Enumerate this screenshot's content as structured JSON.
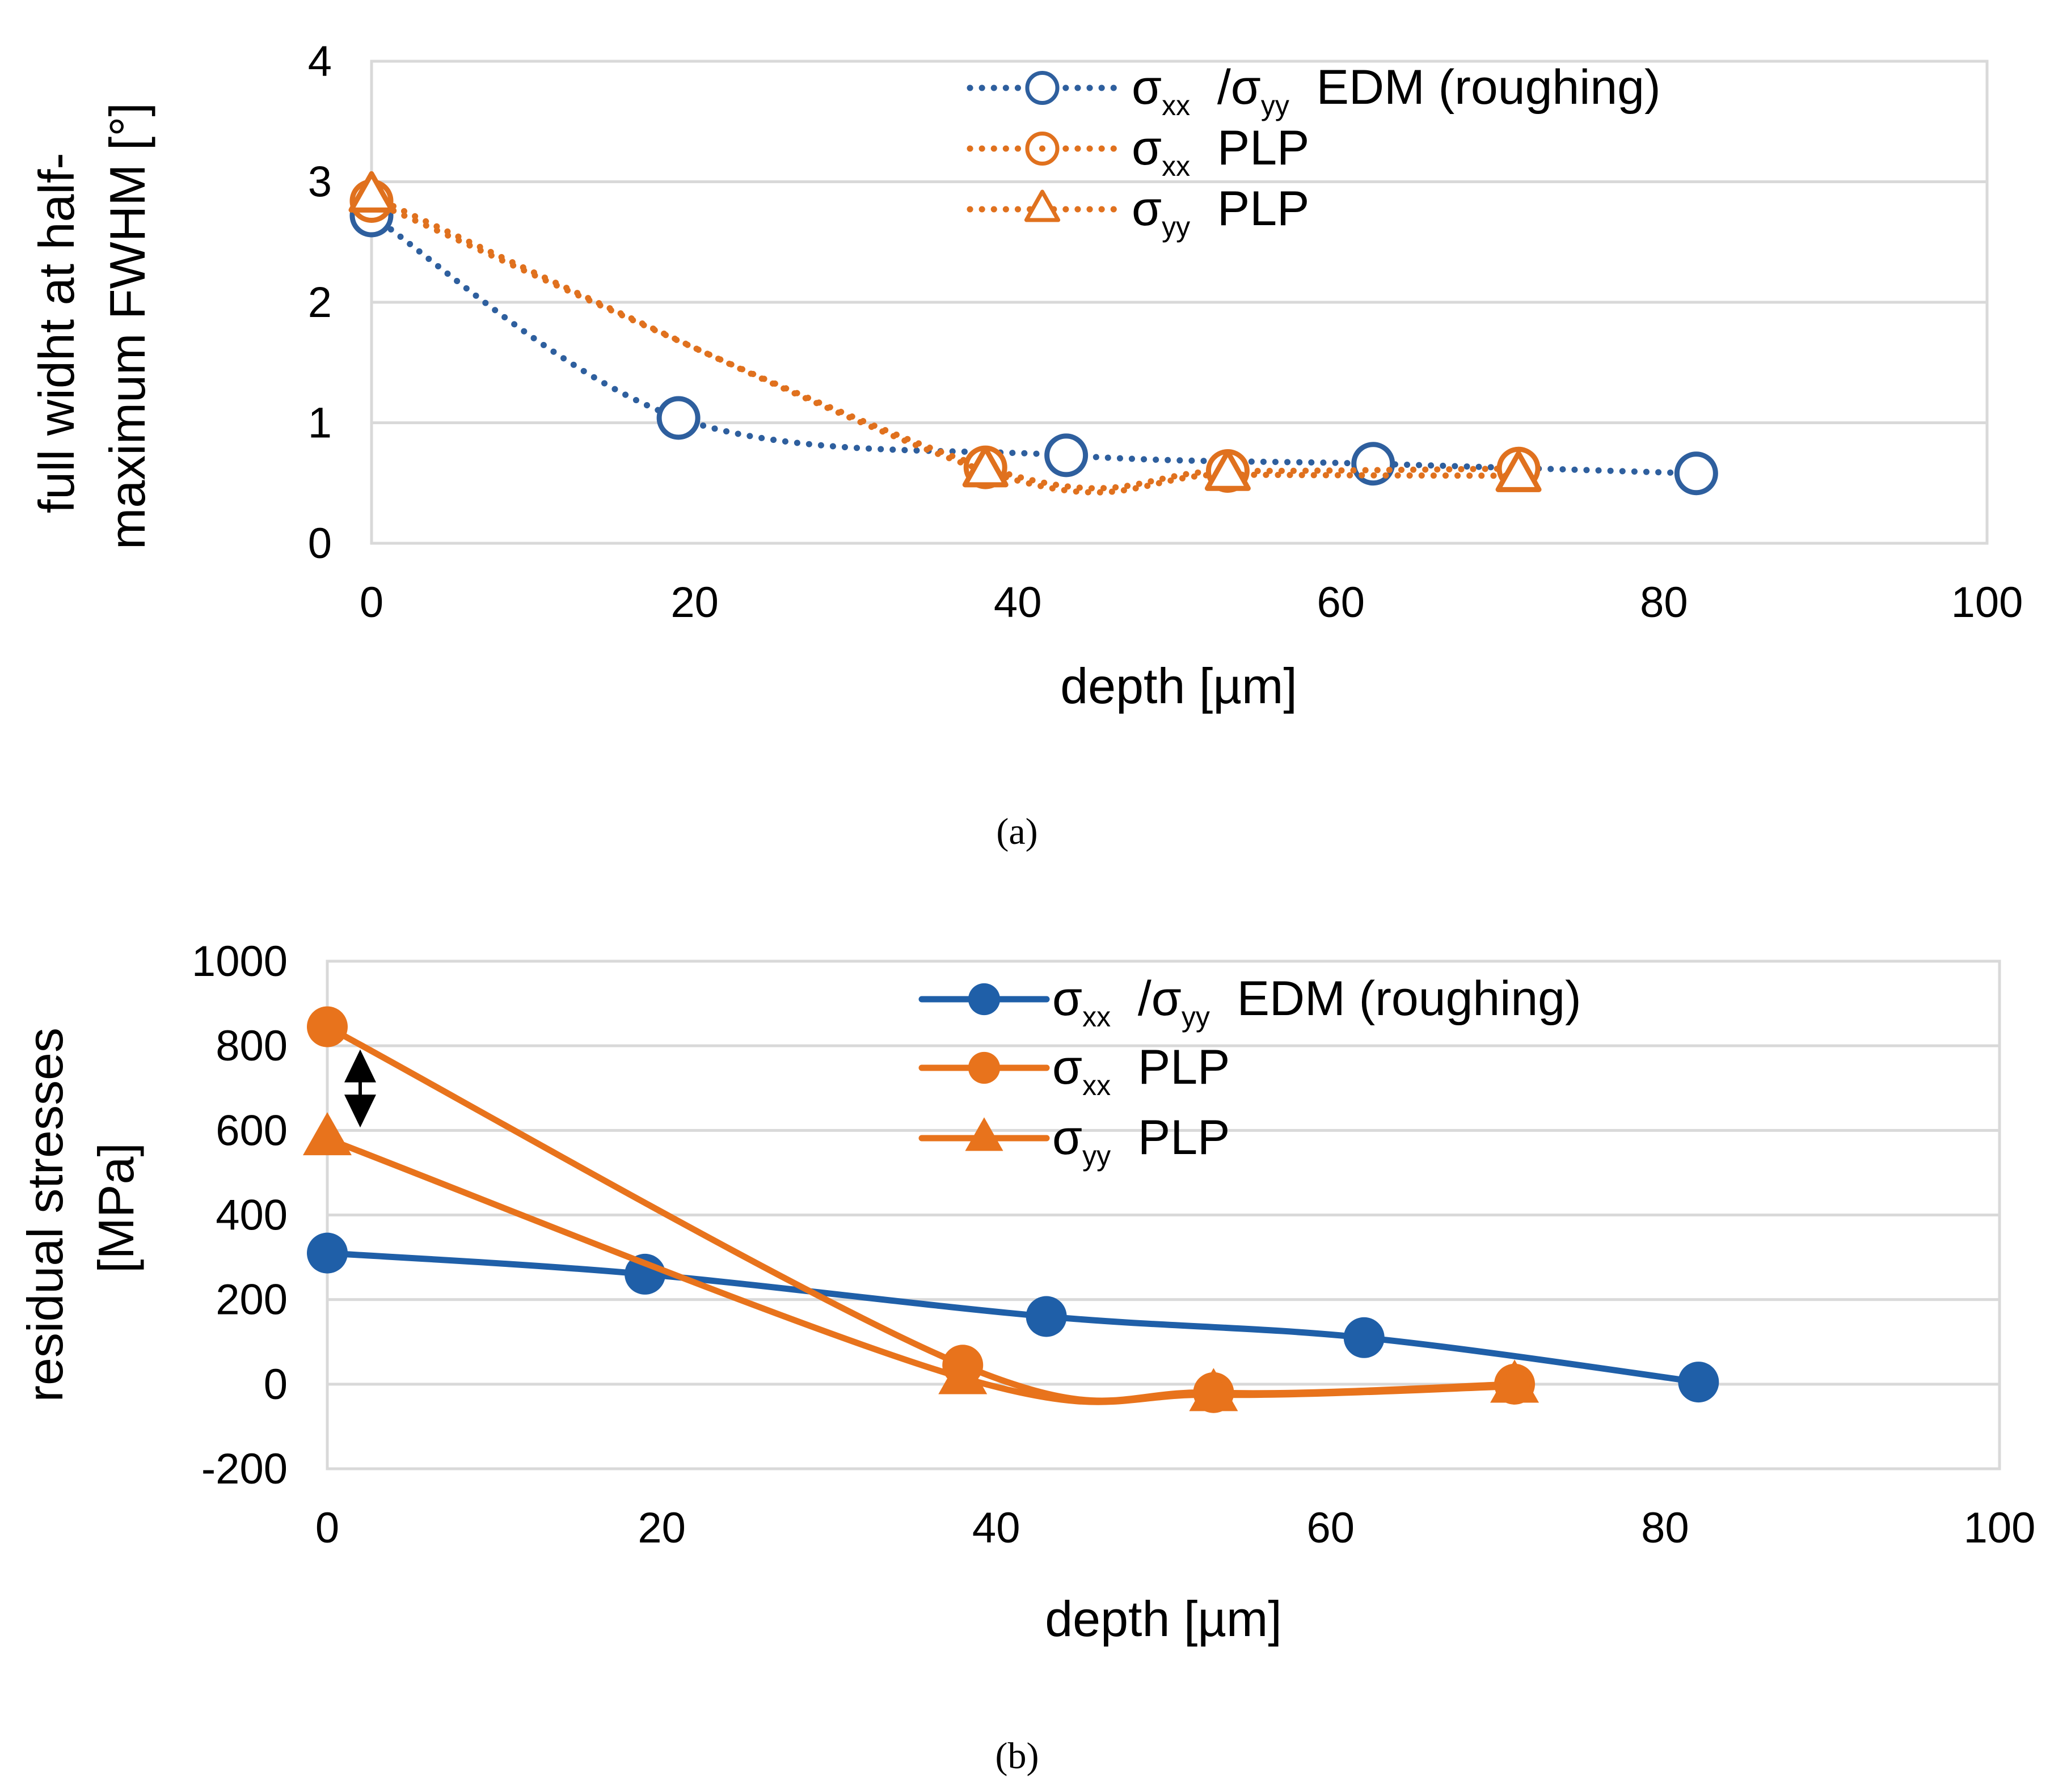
{
  "chart_data": [
    {
      "type": "line",
      "panel": "a",
      "caption": "(a)",
      "ylabel_lines": [
        "full widht at half-",
        "maximum FWHM [°]"
      ],
      "xlabel": "depth [µm]",
      "xlim": [
        0,
        100
      ],
      "ylim": [
        0,
        4
      ],
      "xticks": [
        "0",
        "20",
        "40",
        "60",
        "80",
        "100"
      ],
      "yticks": [
        "0",
        "1",
        "2",
        "3",
        "4"
      ],
      "grid": true,
      "legend_position": "top-right",
      "series": [
        {
          "name": "σxx /σyy EDM (roughing)",
          "legend": {
            "main": "σ",
            "sub1": "xx",
            "mid": " /σ",
            "sub2": "yy",
            "rest": " EDM (roughing)"
          },
          "color": "#2e5f9e",
          "line": "dotted",
          "marker": "open-circle",
          "x": [
            0,
            19,
            43,
            62,
            82
          ],
          "y": [
            2.72,
            1.04,
            0.73,
            0.66,
            0.58
          ]
        },
        {
          "name": "σxx PLP",
          "legend": {
            "main": "σ",
            "sub1": "xx",
            "mid": "",
            "sub2": "",
            "rest": " PLP"
          },
          "color": "#e0711e",
          "line": "dotted",
          "marker": "open-circle-dot",
          "x": [
            0,
            38,
            53,
            71
          ],
          "y": [
            2.84,
            0.63,
            0.6,
            0.62
          ]
        },
        {
          "name": "σyy PLP",
          "legend": {
            "main": "σ",
            "sub1": "yy",
            "mid": "",
            "sub2": "",
            "rest": " PLP"
          },
          "color": "#e0711e",
          "line": "dotted",
          "marker": "open-triangle",
          "x": [
            0,
            38,
            53,
            71
          ],
          "y": [
            2.88,
            0.6,
            0.57,
            0.56
          ]
        }
      ]
    },
    {
      "type": "line",
      "panel": "b",
      "caption": "(b)",
      "ylabel_lines": [
        "residual stresses",
        "[MPa]"
      ],
      "xlabel": "depth [µm]",
      "xlim": [
        0,
        100
      ],
      "ylim": [
        -200,
        1000
      ],
      "xticks": [
        "0",
        "20",
        "40",
        "60",
        "80",
        "100"
      ],
      "yticks": [
        "-200",
        "0",
        "200",
        "400",
        "600",
        "800",
        "1000"
      ],
      "grid": true,
      "legend_position": "top-right",
      "annotation": "double-headed arrow between σxx and σyy at depth 0",
      "series": [
        {
          "name": "σxx /σyy EDM (roughing)",
          "legend": {
            "main": "σ",
            "sub1": "xx",
            "mid": " /σ",
            "sub2": "yy",
            "rest": " EDM (roughing)"
          },
          "color": "#1f5fa8",
          "line": "solid",
          "marker": "filled-circle",
          "x": [
            0,
            19,
            43,
            62,
            82
          ],
          "y": [
            310,
            260,
            160,
            110,
            5
          ]
        },
        {
          "name": "σxx PLP",
          "legend": {
            "main": "σ",
            "sub1": "xx",
            "mid": "",
            "sub2": "",
            "rest": " PLP"
          },
          "color": "#e8731c",
          "line": "solid",
          "marker": "filled-circle",
          "x": [
            0,
            38,
            53,
            71
          ],
          "y": [
            845,
            45,
            -20,
            0
          ]
        },
        {
          "name": "σyy PLP",
          "legend": {
            "main": "σ",
            "sub1": "yy",
            "mid": "",
            "sub2": "",
            "rest": " PLP"
          },
          "color": "#e8731c",
          "line": "solid",
          "marker": "filled-triangle",
          "x": [
            0,
            38,
            53,
            71
          ],
          "y": [
            580,
            15,
            -25,
            -5
          ]
        }
      ]
    }
  ]
}
